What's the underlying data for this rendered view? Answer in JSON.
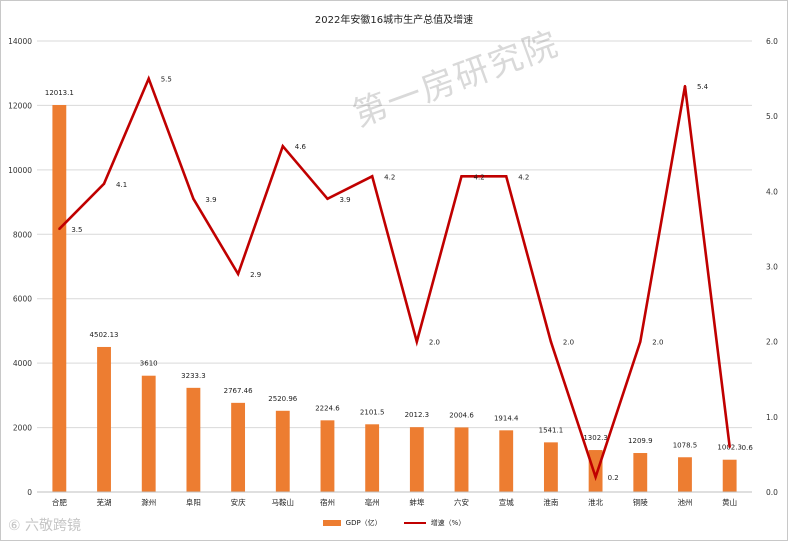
{
  "chart_data": {
    "type": "bar",
    "title": "2022年安徽16城市生产总值及增速",
    "categories": [
      "合肥",
      "芜湖",
      "滁州",
      "阜阳",
      "安庆",
      "马鞍山",
      "宿州",
      "亳州",
      "蚌埠",
      "六安",
      "宣城",
      "淮南",
      "淮北",
      "铜陵",
      "池州",
      "黄山"
    ],
    "series": [
      {
        "name": "GDP（亿）",
        "type": "bar",
        "axis": "left",
        "color": "#ED7D31",
        "values": [
          12013.1,
          4502.13,
          3610,
          3233.3,
          2767.46,
          2520.96,
          2224.6,
          2101.5,
          2012.3,
          2004.6,
          1914.4,
          1541.1,
          1302.3,
          1209.9,
          1078.5,
          1002.3
        ],
        "labels": [
          "12013.1",
          "4502.13",
          "3610",
          "3233.3",
          "2767.46",
          "2520.96",
          "2224.6",
          "2101.5",
          "2012.3",
          "2004.6",
          "1914.4",
          "1541.1",
          "1302.3",
          "1209.9",
          "1078.5",
          "1002.3"
        ]
      },
      {
        "name": "增速（%）",
        "type": "line",
        "axis": "right",
        "color": "#C00000",
        "values": [
          3.5,
          4.1,
          5.5,
          3.9,
          2.9,
          4.6,
          3.9,
          4.2,
          2.0,
          4.2,
          4.2,
          2.0,
          0.2,
          2.0,
          5.4,
          0.6
        ],
        "labels": [
          "3.5",
          "4.1",
          "5.5",
          "3.9",
          "2.9",
          "4.6",
          "3.9",
          "4.2",
          "2.0",
          "4.2",
          "4.2",
          "2.0",
          "0.2",
          "2.0",
          "5.4",
          "0.6"
        ]
      }
    ],
    "y_left": {
      "min": 0,
      "max": 14000,
      "ticks": [
        "0",
        "2000",
        "4000",
        "6000",
        "8000",
        "10000",
        "12000",
        "14000"
      ]
    },
    "y_right": {
      "min": 0,
      "max": 6,
      "ticks": [
        "0.0",
        "1.0",
        "2.0",
        "3.0",
        "4.0",
        "5.0",
        "6.0"
      ]
    },
    "grid": true,
    "legend_position": "bottom"
  },
  "watermark": "第一房研究院",
  "source_mark": "⑥ 六敬跨镜"
}
